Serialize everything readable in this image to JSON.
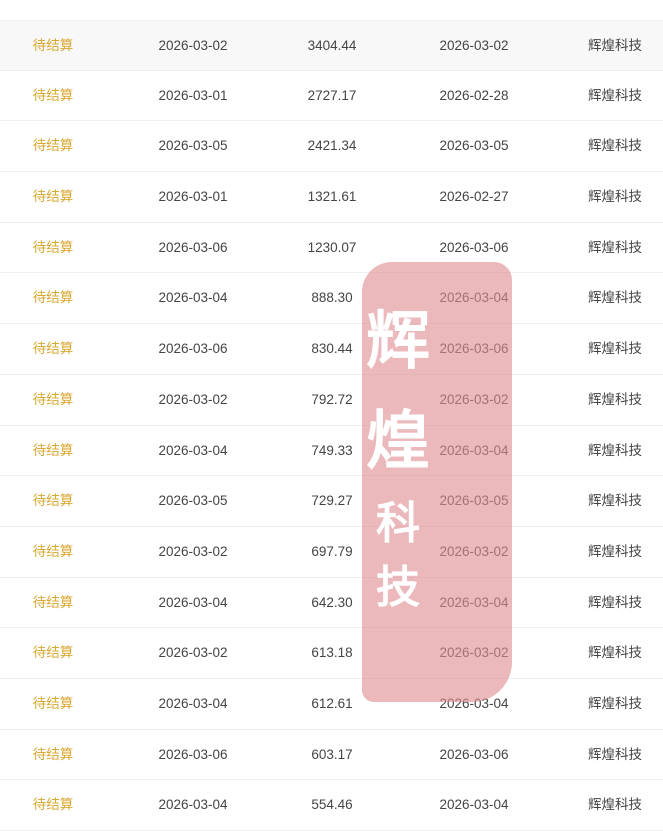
{
  "rows": [
    {
      "status": "待结算",
      "date": "2026-03-02",
      "amount": "3404.44",
      "settle_date": "2026-03-02",
      "company": "辉煌科技"
    },
    {
      "status": "待结算",
      "date": "2026-03-01",
      "amount": "2727.17",
      "settle_date": "2026-02-28",
      "company": "辉煌科技"
    },
    {
      "status": "待结算",
      "date": "2026-03-05",
      "amount": "2421.34",
      "settle_date": "2026-03-05",
      "company": "辉煌科技"
    },
    {
      "status": "待结算",
      "date": "2026-03-01",
      "amount": "1321.61",
      "settle_date": "2026-02-27",
      "company": "辉煌科技"
    },
    {
      "status": "待结算",
      "date": "2026-03-06",
      "amount": "1230.07",
      "settle_date": "2026-03-06",
      "company": "辉煌科技"
    },
    {
      "status": "待结算",
      "date": "2026-03-04",
      "amount": "888.30",
      "settle_date": "2026-03-04",
      "company": "辉煌科技"
    },
    {
      "status": "待结算",
      "date": "2026-03-06",
      "amount": "830.44",
      "settle_date": "2026-03-06",
      "company": "辉煌科技"
    },
    {
      "status": "待结算",
      "date": "2026-03-02",
      "amount": "792.72",
      "settle_date": "2026-03-02",
      "company": "辉煌科技"
    },
    {
      "status": "待结算",
      "date": "2026-03-04",
      "amount": "749.33",
      "settle_date": "2026-03-04",
      "company": "辉煌科技"
    },
    {
      "status": "待结算",
      "date": "2026-03-05",
      "amount": "729.27",
      "settle_date": "2026-03-05",
      "company": "辉煌科技"
    },
    {
      "status": "待结算",
      "date": "2026-03-02",
      "amount": "697.79",
      "settle_date": "2026-03-02",
      "company": "辉煌科技"
    },
    {
      "status": "待结算",
      "date": "2026-03-04",
      "amount": "642.30",
      "settle_date": "2026-03-04",
      "company": "辉煌科技"
    },
    {
      "status": "待结算",
      "date": "2026-03-02",
      "amount": "613.18",
      "settle_date": "2026-03-02",
      "company": "辉煌科技"
    },
    {
      "status": "待结算",
      "date": "2026-03-04",
      "amount": "612.61",
      "settle_date": "2026-03-04",
      "company": "辉煌科技"
    },
    {
      "status": "待结算",
      "date": "2026-03-06",
      "amount": "603.17",
      "settle_date": "2026-03-06",
      "company": "辉煌科技"
    },
    {
      "status": "待结算",
      "date": "2026-03-04",
      "amount": "554.46",
      "settle_date": "2026-03-04",
      "company": "辉煌科技"
    }
  ],
  "watermark": {
    "chars": [
      "辉",
      "煌",
      "科",
      "技"
    ]
  },
  "colors": {
    "status_pending": "#d8a832",
    "seal": "#de8c91",
    "text": "#444444"
  }
}
